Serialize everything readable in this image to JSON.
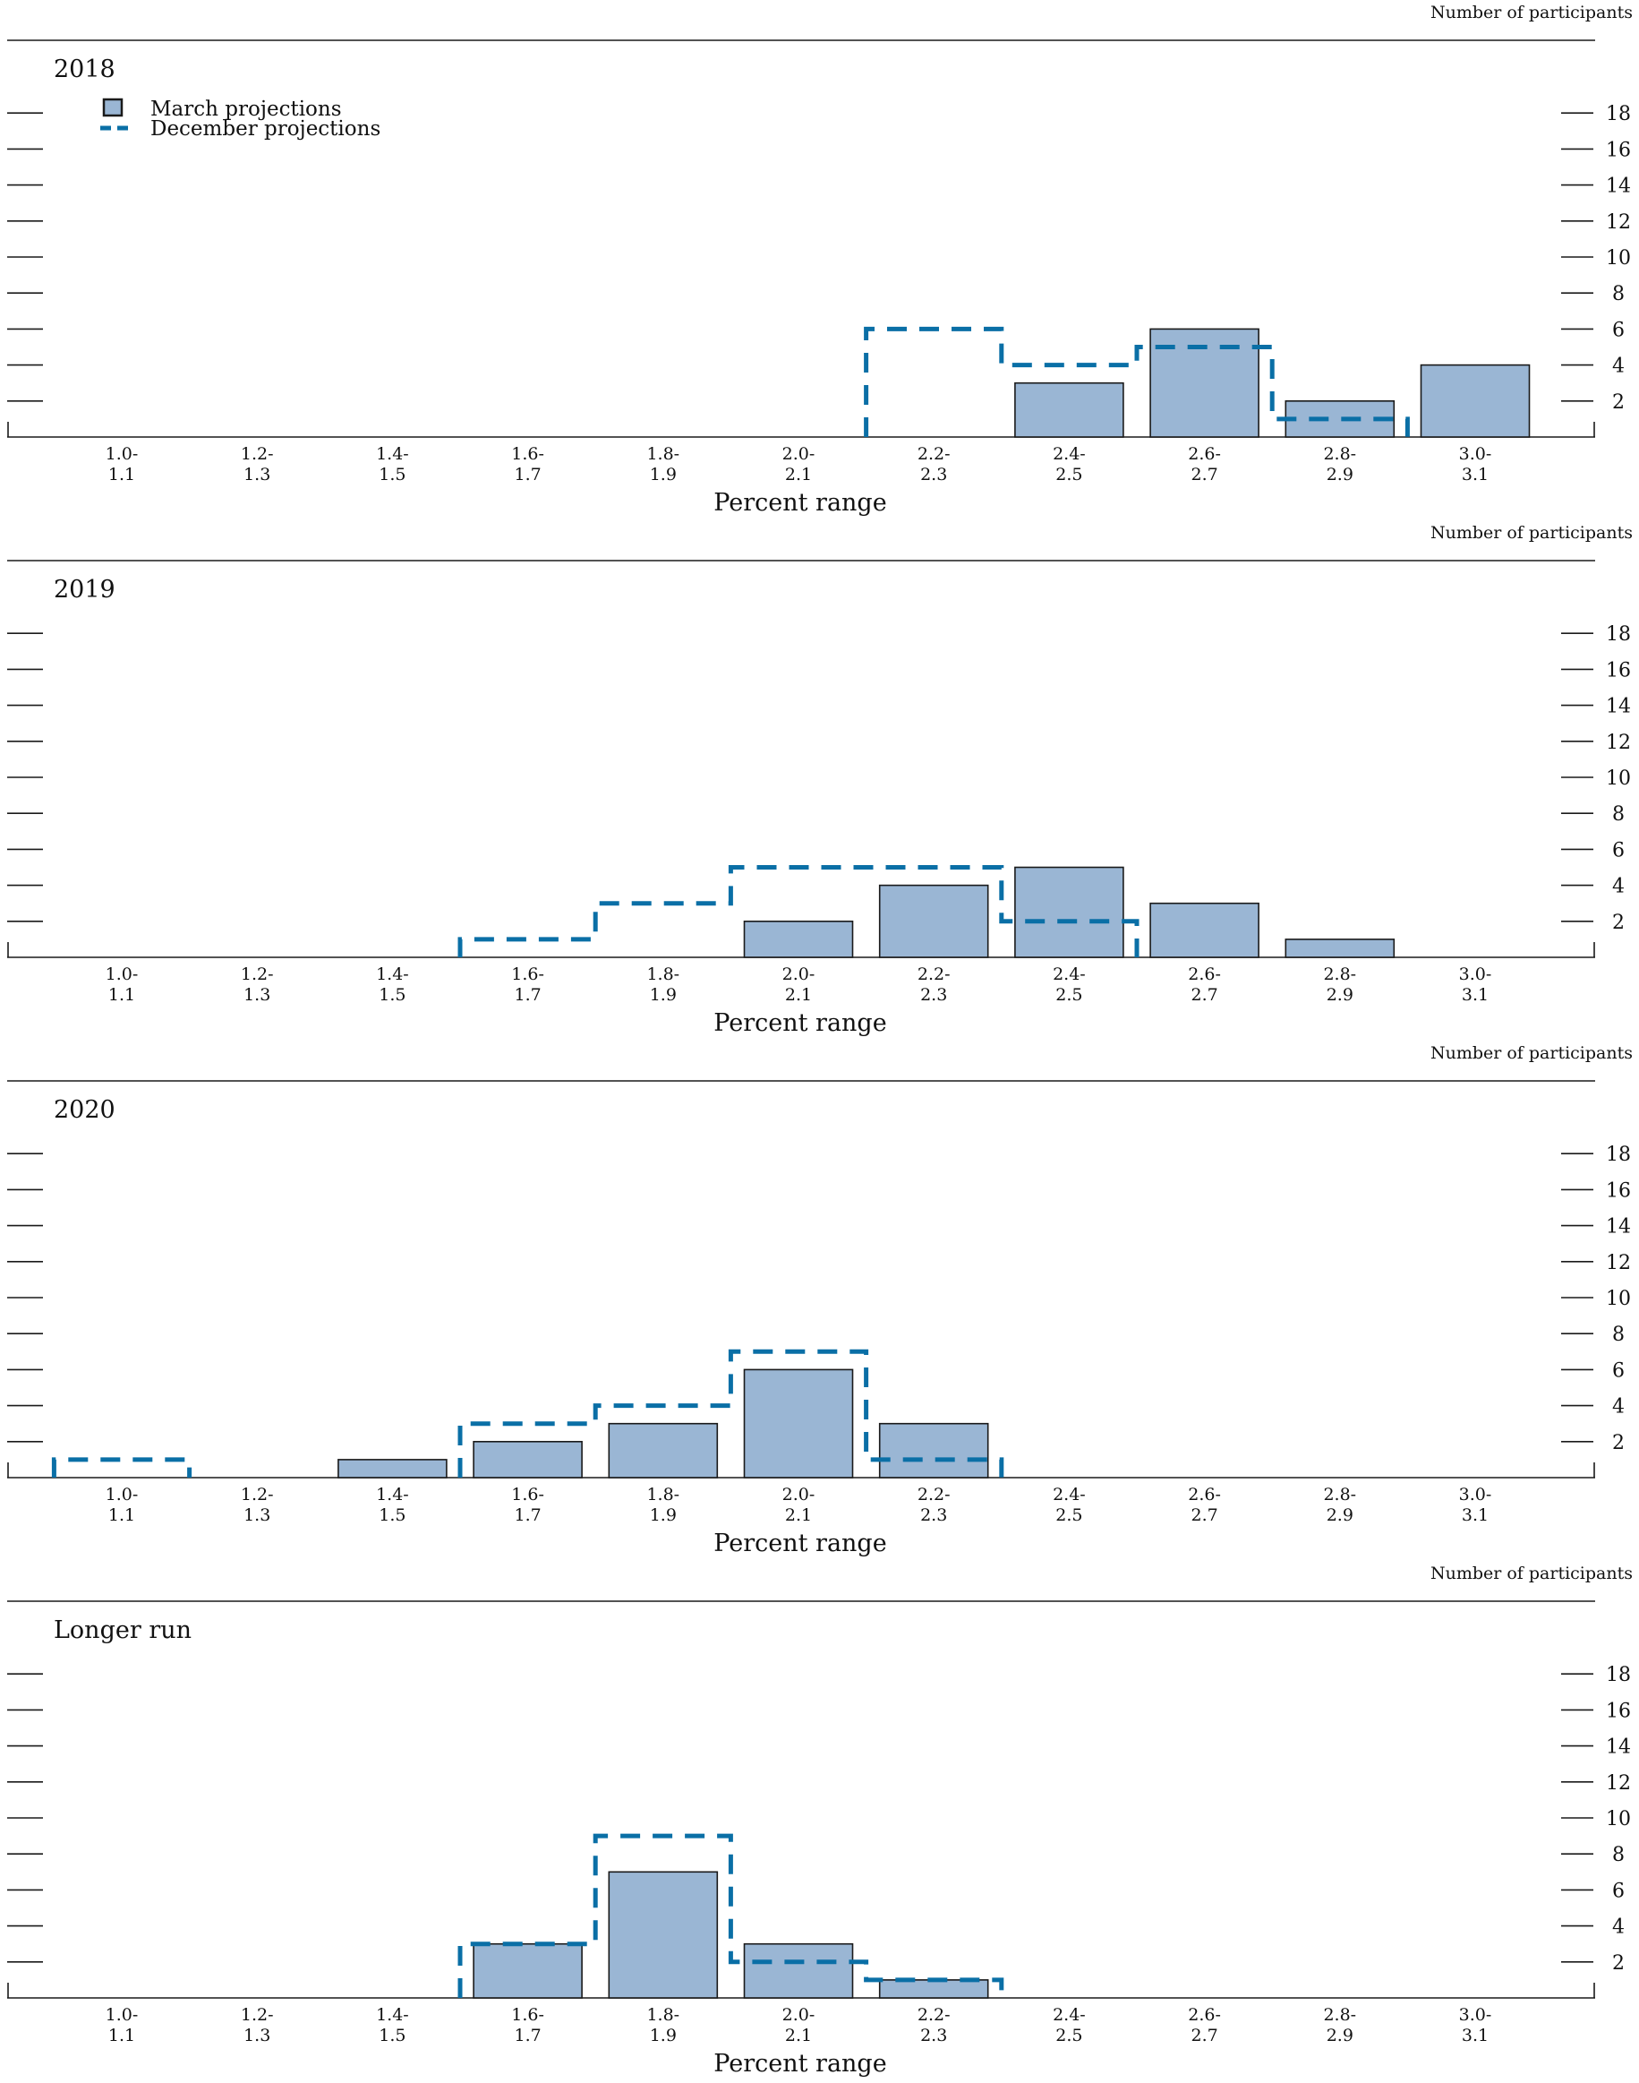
{
  "legend": {
    "march_label": "March projections",
    "december_label": "December projections"
  },
  "colors": {
    "bar_fill": "#9ab6d4",
    "bar_stroke": "#1a1a1a",
    "dashed_line": "#0a6fa6",
    "axis": "#1a1a1a"
  },
  "chart_data": [
    {
      "type": "bar",
      "title": "2018",
      "ylabel": "Number of participants",
      "xlabel": "Percent range",
      "categories": [
        "1.0-\n1.1",
        "1.2-\n1.3",
        "1.4-\n1.5",
        "1.6-\n1.7",
        "1.8-\n1.9",
        "2.0-\n2.1",
        "2.2-\n2.3",
        "2.4-\n2.5",
        "2.6-\n2.7",
        "2.8-\n2.9",
        "3.0-\n3.1"
      ],
      "yticks": [
        2,
        4,
        6,
        8,
        10,
        12,
        14,
        16,
        18
      ],
      "ylim": [
        0,
        18
      ],
      "series": [
        {
          "name": "March projections",
          "style": "bar",
          "values": [
            0,
            0,
            0,
            0,
            0,
            0,
            0,
            3,
            6,
            2,
            4
          ]
        },
        {
          "name": "December projections",
          "style": "dashed-step",
          "values": [
            0,
            0,
            0,
            0,
            0,
            0,
            6,
            4,
            5,
            1,
            0
          ]
        }
      ]
    },
    {
      "type": "bar",
      "title": "2019",
      "ylabel": "Number of participants",
      "xlabel": "Percent range",
      "categories": [
        "1.0-\n1.1",
        "1.2-\n1.3",
        "1.4-\n1.5",
        "1.6-\n1.7",
        "1.8-\n1.9",
        "2.0-\n2.1",
        "2.2-\n2.3",
        "2.4-\n2.5",
        "2.6-\n2.7",
        "2.8-\n2.9",
        "3.0-\n3.1"
      ],
      "yticks": [
        2,
        4,
        6,
        8,
        10,
        12,
        14,
        16,
        18
      ],
      "ylim": [
        0,
        18
      ],
      "series": [
        {
          "name": "March projections",
          "style": "bar",
          "values": [
            0,
            0,
            0,
            0,
            0,
            2,
            4,
            5,
            3,
            1,
            0
          ]
        },
        {
          "name": "December projections",
          "style": "dashed-step",
          "values": [
            0,
            0,
            0,
            1,
            3,
            5,
            5,
            2,
            0,
            0,
            0
          ]
        }
      ]
    },
    {
      "type": "bar",
      "title": "2020",
      "ylabel": "Number of participants",
      "xlabel": "Percent range",
      "categories": [
        "1.0-\n1.1",
        "1.2-\n1.3",
        "1.4-\n1.5",
        "1.6-\n1.7",
        "1.8-\n1.9",
        "2.0-\n2.1",
        "2.2-\n2.3",
        "2.4-\n2.5",
        "2.6-\n2.7",
        "2.8-\n2.9",
        "3.0-\n3.1"
      ],
      "yticks": [
        2,
        4,
        6,
        8,
        10,
        12,
        14,
        16,
        18
      ],
      "ylim": [
        0,
        18
      ],
      "series": [
        {
          "name": "March projections",
          "style": "bar",
          "values": [
            0,
            0,
            1,
            2,
            3,
            6,
            3,
            0,
            0,
            0,
            0
          ]
        },
        {
          "name": "December projections",
          "style": "dashed-step",
          "values": [
            1,
            0,
            0,
            3,
            4,
            7,
            1,
            0,
            0,
            0,
            0
          ]
        }
      ]
    },
    {
      "type": "bar",
      "title": "Longer run",
      "ylabel": "Number of participants",
      "xlabel": "Percent range",
      "categories": [
        "1.0-\n1.1",
        "1.2-\n1.3",
        "1.4-\n1.5",
        "1.6-\n1.7",
        "1.8-\n1.9",
        "2.0-\n2.1",
        "2.2-\n2.3",
        "2.4-\n2.5",
        "2.6-\n2.7",
        "2.8-\n2.9",
        "3.0-\n3.1"
      ],
      "yticks": [
        2,
        4,
        6,
        8,
        10,
        12,
        14,
        16,
        18
      ],
      "ylim": [
        0,
        18
      ],
      "series": [
        {
          "name": "March projections",
          "style": "bar",
          "values": [
            0,
            0,
            0,
            3,
            7,
            3,
            1,
            0,
            0,
            0,
            0
          ]
        },
        {
          "name": "December projections",
          "style": "dashed-step",
          "values": [
            0,
            0,
            0,
            3,
            9,
            2,
            1,
            0,
            0,
            0,
            0
          ]
        }
      ]
    }
  ]
}
